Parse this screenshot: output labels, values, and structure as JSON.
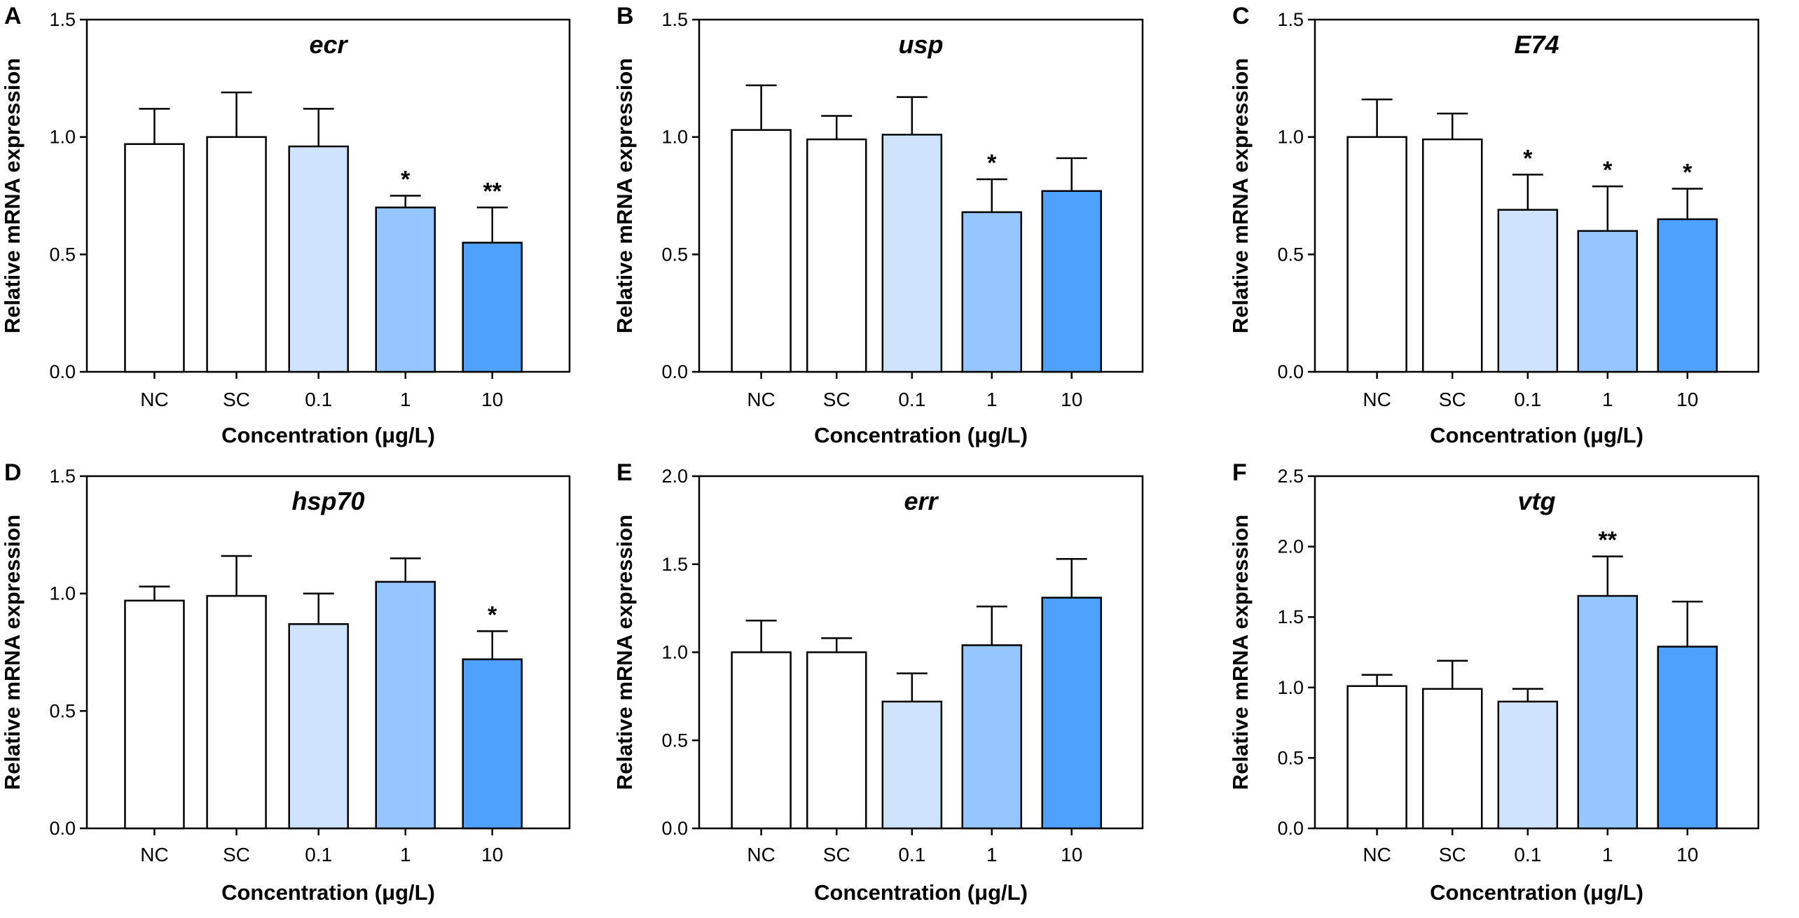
{
  "chart_data": [
    {
      "type": "bar",
      "panel": "A",
      "title": "ecr",
      "xlabel": "Concentration (μg/L)",
      "ylabel": "Relative mRNA expression",
      "categories": [
        "NC",
        "SC",
        "0.1",
        "1",
        "10"
      ],
      "values": [
        0.97,
        1.0,
        0.96,
        0.7,
        0.55
      ],
      "errors": [
        0.15,
        0.19,
        0.16,
        0.05,
        0.15
      ],
      "significance": [
        "",
        "",
        "",
        "*",
        "**"
      ],
      "ylim": [
        0,
        1.5
      ],
      "yticks": [
        "0.0",
        "0.5",
        "1.0",
        "1.5"
      ],
      "colors": [
        "#ffffff",
        "#ffffff",
        "#cfe4fc",
        "#96c6ff",
        "#4fa1fe"
      ]
    },
    {
      "type": "bar",
      "panel": "B",
      "title": "usp",
      "xlabel": "Concentration (μg/L)",
      "ylabel": "Relative mRNA expression",
      "categories": [
        "NC",
        "SC",
        "0.1",
        "1",
        "10"
      ],
      "values": [
        1.03,
        0.99,
        1.01,
        0.68,
        0.77
      ],
      "errors": [
        0.19,
        0.1,
        0.16,
        0.14,
        0.14
      ],
      "significance": [
        "",
        "",
        "",
        "*",
        ""
      ],
      "ylim": [
        0,
        1.5
      ],
      "yticks": [
        "0.0",
        "0.5",
        "1.0",
        "1.5"
      ],
      "colors": [
        "#ffffff",
        "#ffffff",
        "#cfe4fc",
        "#96c6ff",
        "#4fa1fe"
      ]
    },
    {
      "type": "bar",
      "panel": "C",
      "title": "E74",
      "xlabel": "Concentration (μg/L)",
      "ylabel": "Relative mRNA expression",
      "categories": [
        "NC",
        "SC",
        "0.1",
        "1",
        "10"
      ],
      "values": [
        1.0,
        0.99,
        0.69,
        0.6,
        0.65
      ],
      "errors": [
        0.16,
        0.11,
        0.15,
        0.19,
        0.13
      ],
      "significance": [
        "",
        "",
        "*",
        "*",
        "*"
      ],
      "ylim": [
        0,
        1.5
      ],
      "yticks": [
        "0.0",
        "0.5",
        "1.0",
        "1.5"
      ],
      "colors": [
        "#ffffff",
        "#ffffff",
        "#cfe4fc",
        "#96c6ff",
        "#4fa1fe"
      ]
    },
    {
      "type": "bar",
      "panel": "D",
      "title": "hsp70",
      "xlabel": "Concentration (μg/L)",
      "ylabel": "Relative mRNA expression",
      "categories": [
        "NC",
        "SC",
        "0.1",
        "1",
        "10"
      ],
      "values": [
        0.97,
        0.99,
        0.87,
        1.05,
        0.72
      ],
      "errors": [
        0.06,
        0.17,
        0.13,
        0.1,
        0.12
      ],
      "significance": [
        "",
        "",
        "",
        "",
        "*"
      ],
      "ylim": [
        0,
        1.5
      ],
      "yticks": [
        "0.0",
        "0.5",
        "1.0",
        "1.5"
      ],
      "colors": [
        "#ffffff",
        "#ffffff",
        "#cfe4fc",
        "#96c6ff",
        "#4fa1fe"
      ]
    },
    {
      "type": "bar",
      "panel": "E",
      "title": "err",
      "xlabel": "Concentration (μg/L)",
      "ylabel": "Relative mRNA expression",
      "categories": [
        "NC",
        "SC",
        "0.1",
        "1",
        "10"
      ],
      "values": [
        1.0,
        1.0,
        0.72,
        1.04,
        1.31
      ],
      "errors": [
        0.18,
        0.08,
        0.16,
        0.22,
        0.22
      ],
      "significance": [
        "",
        "",
        "",
        "",
        ""
      ],
      "ylim": [
        0,
        2.0
      ],
      "yticks": [
        "0.0",
        "0.5",
        "1.0",
        "1.5",
        "2.0"
      ],
      "colors": [
        "#ffffff",
        "#ffffff",
        "#cfe4fc",
        "#96c6ff",
        "#4fa1fe"
      ]
    },
    {
      "type": "bar",
      "panel": "F",
      "title": "vtg",
      "xlabel": "Concentration (μg/L)",
      "ylabel": "Relative mRNA expression",
      "categories": [
        "NC",
        "SC",
        "0.1",
        "1",
        "10"
      ],
      "values": [
        1.01,
        0.99,
        0.9,
        1.65,
        1.29
      ],
      "errors": [
        0.08,
        0.2,
        0.09,
        0.28,
        0.32
      ],
      "significance": [
        "",
        "",
        "",
        "**",
        ""
      ],
      "ylim": [
        0,
        2.5
      ],
      "yticks": [
        "0.0",
        "0.5",
        "1.0",
        "1.5",
        "2.0",
        "2.5"
      ],
      "colors": [
        "#ffffff",
        "#ffffff",
        "#cfe4fc",
        "#96c6ff",
        "#4fa1fe"
      ]
    }
  ]
}
